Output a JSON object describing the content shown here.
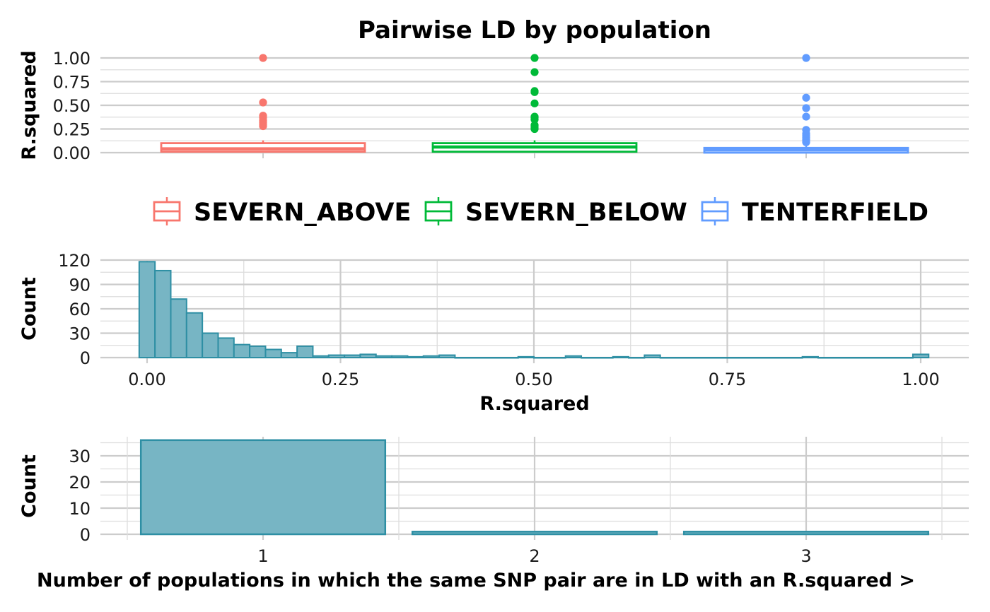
{
  "chart_data": [
    {
      "type": "box",
      "title": "Pairwise LD by population",
      "ylabel": "R.squared",
      "ylim": [
        0,
        1
      ],
      "yticks": [
        "0.00",
        "0.25",
        "0.50",
        "0.75",
        "1.00"
      ],
      "legend_position": "bottom",
      "series": [
        {
          "name": "SEVERN_ABOVE",
          "color": "#F8766D",
          "q1": 0.01,
          "median": 0.04,
          "q3": 0.1,
          "whisker_low": 0.0,
          "whisker_high": 0.13,
          "outliers": [
            0.28,
            0.3,
            0.32,
            0.34,
            0.37,
            0.39,
            0.53,
            1.0
          ]
        },
        {
          "name": "SEVERN_BELOW",
          "color": "#00BA38",
          "q1": 0.01,
          "median": 0.06,
          "q3": 0.1,
          "whisker_low": 0.0,
          "whisker_high": 0.13,
          "outliers": [
            0.25,
            0.27,
            0.29,
            0.35,
            0.37,
            0.38,
            0.52,
            0.64,
            0.65,
            0.85,
            1.0
          ]
        },
        {
          "name": "TENTERFIELD",
          "color": "#619CFF",
          "q1": 0.0,
          "median": 0.03,
          "q3": 0.05,
          "whisker_low": 0.0,
          "whisker_high": 0.07,
          "outliers": [
            0.11,
            0.13,
            0.14,
            0.16,
            0.18,
            0.2,
            0.24,
            0.38,
            0.47,
            0.58,
            1.0
          ]
        }
      ]
    },
    {
      "type": "bar",
      "subtype": "histogram",
      "xlabel": "R.squared",
      "ylabel": "Count",
      "xlim": [
        -0.02,
        1.02
      ],
      "ylim": [
        0,
        120
      ],
      "xticks": [
        "0.00",
        "0.25",
        "0.50",
        "0.75",
        "1.00"
      ],
      "yticks": [
        "0",
        "30",
        "60",
        "90",
        "120"
      ],
      "bin_width": 0.02041,
      "bin_start": -0.0102,
      "counts": [
        118,
        107,
        72,
        55,
        30,
        24,
        16,
        14,
        10,
        6,
        14,
        2,
        3,
        3,
        4,
        2,
        2,
        1,
        2,
        3,
        0,
        0,
        0,
        0,
        1,
        0,
        0,
        2,
        0,
        0,
        1,
        0,
        3,
        0,
        0,
        0,
        0,
        0,
        0,
        0,
        0,
        0,
        1,
        0,
        0,
        0,
        0,
        0,
        0,
        4
      ],
      "fill": "#77B5C4",
      "stroke": "#2E8FA4"
    },
    {
      "type": "bar",
      "xlabel": "Number of populations in which the same SNP pair are in LD with an R.squared >",
      "ylabel": "Count",
      "ylim": [
        0,
        36
      ],
      "categories": [
        "1",
        "2",
        "3"
      ],
      "yticks": [
        "0",
        "10",
        "20",
        "30"
      ],
      "values": [
        36,
        1,
        1
      ],
      "fill": "#77B5C4",
      "stroke": "#2E8FA4"
    }
  ]
}
